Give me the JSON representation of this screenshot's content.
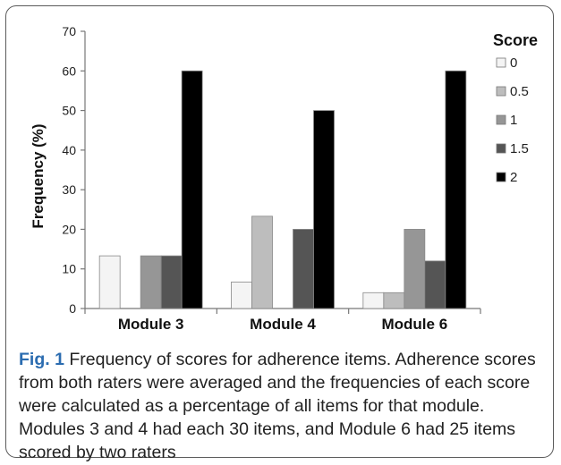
{
  "chart_data": {
    "type": "bar",
    "title": "",
    "xlabel": "",
    "ylabel": "Frequency (%)",
    "ylim": [
      0,
      70
    ],
    "yticks": [
      0,
      10,
      20,
      30,
      40,
      50,
      60,
      70
    ],
    "categories": [
      "Module 3",
      "Module 4",
      "Module 6"
    ],
    "legend_title": "Score",
    "legend_position": "right",
    "grid": false,
    "series": [
      {
        "name": "0",
        "color": "#f4f4f4",
        "values": [
          13.3,
          6.7,
          4.0
        ]
      },
      {
        "name": "0.5",
        "color": "#bdbdbd",
        "values": [
          0,
          23.3,
          4.0
        ]
      },
      {
        "name": "1",
        "color": "#969696",
        "values": [
          13.3,
          0,
          20.0
        ]
      },
      {
        "name": "1.5",
        "color": "#555555",
        "values": [
          13.3,
          20.0,
          12.0
        ]
      },
      {
        "name": "2",
        "color": "#000000",
        "values": [
          60.0,
          50.0,
          60.0
        ]
      }
    ]
  },
  "caption": {
    "label": "Fig. 1",
    "text": "Frequency of scores for adherence items. Adherence scores from both raters were averaged and the frequencies of each score were calculated as a percentage of all items for that module. Modules 3 and 4 had each 30 items, and Module 6 had 25 items scored by two raters"
  }
}
